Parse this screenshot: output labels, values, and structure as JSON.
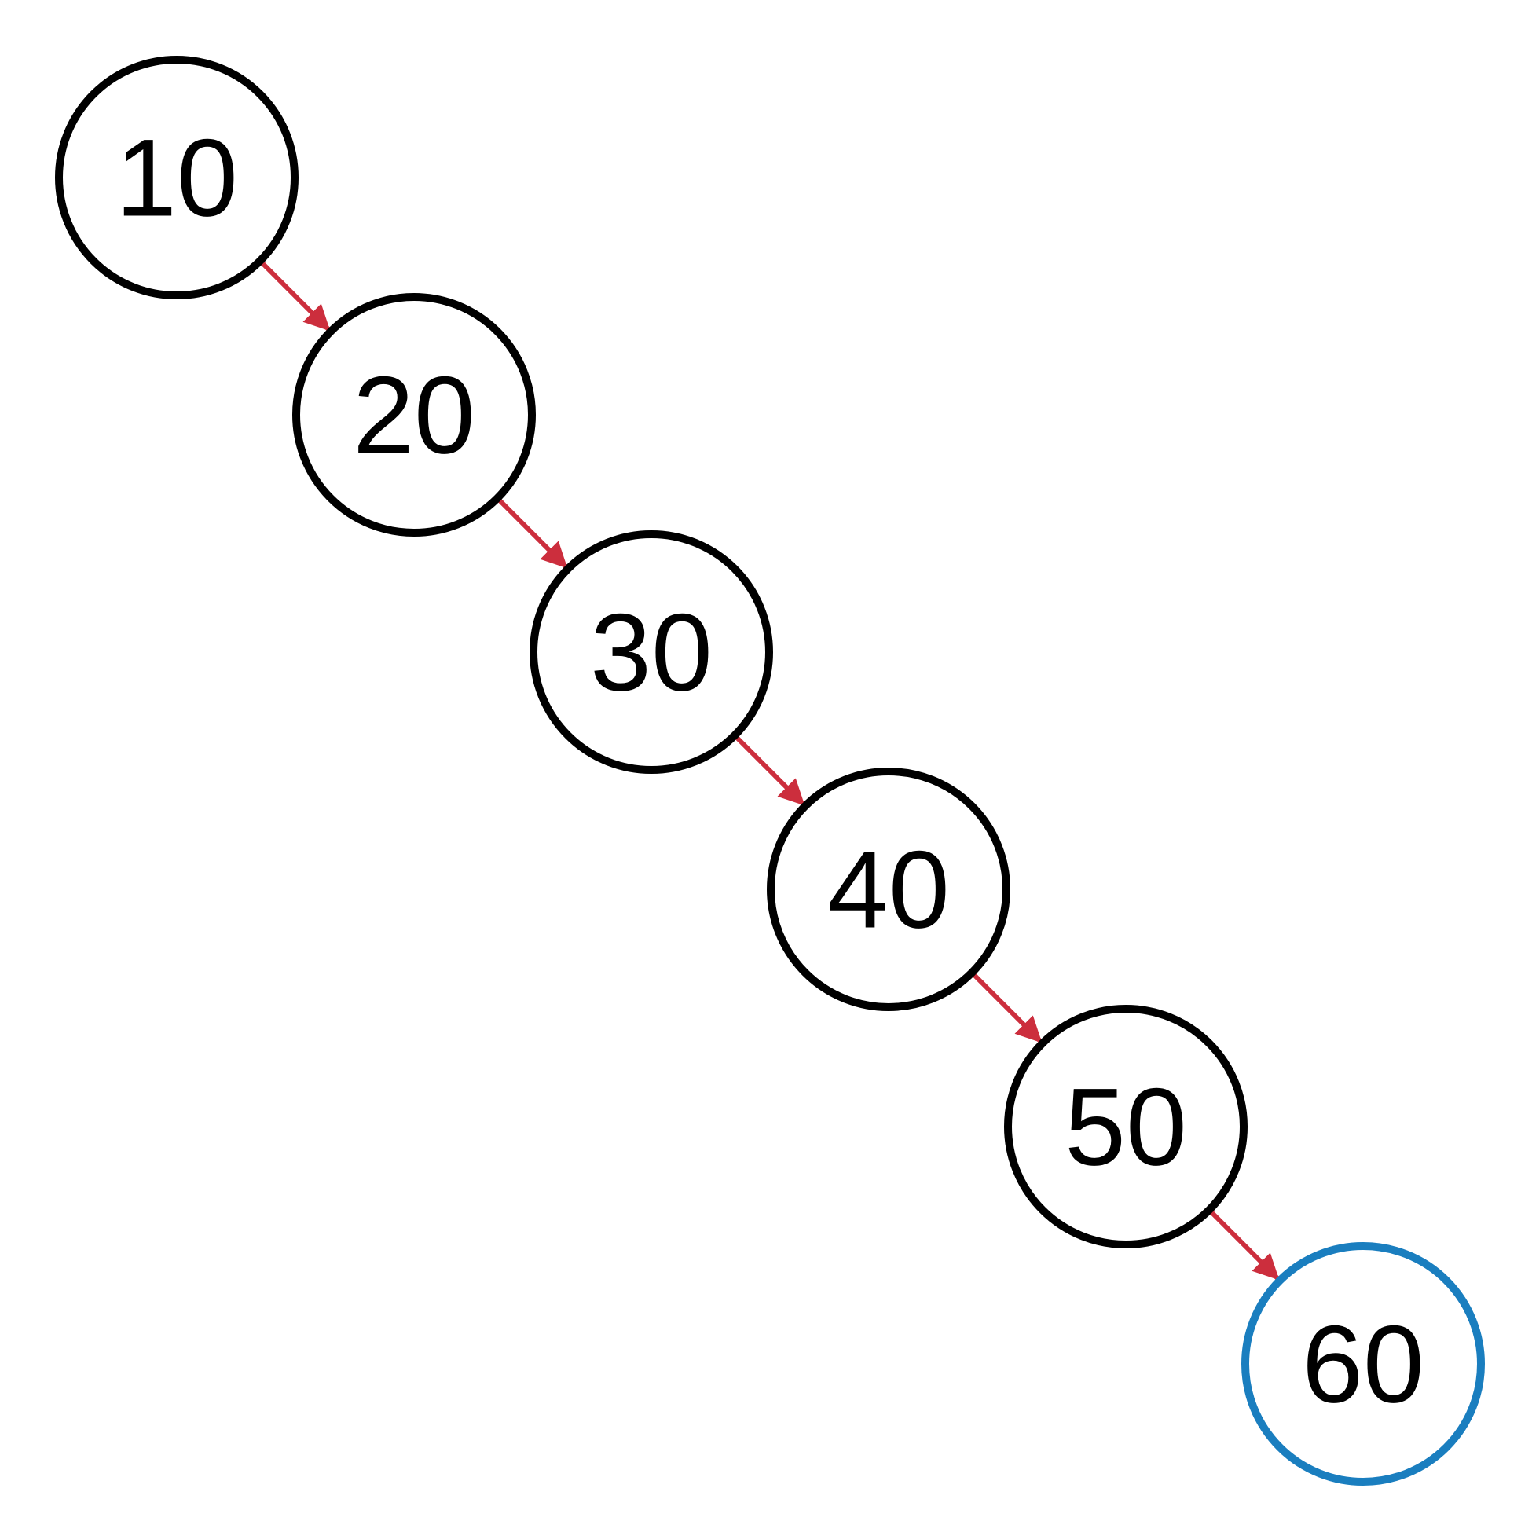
{
  "diagram": {
    "type": "linked-chain",
    "colors": {
      "node_stroke": "#000000",
      "highlight_stroke": "#1a7ebf",
      "edge": "#cc2e3d"
    },
    "nodes": [
      {
        "id": "n10",
        "label": "10",
        "highlight": false
      },
      {
        "id": "n20",
        "label": "20",
        "highlight": false
      },
      {
        "id": "n30",
        "label": "30",
        "highlight": false
      },
      {
        "id": "n40",
        "label": "40",
        "highlight": false
      },
      {
        "id": "n50",
        "label": "50",
        "highlight": false
      },
      {
        "id": "n60",
        "label": "60",
        "highlight": true
      }
    ],
    "edges": [
      {
        "from": "n10",
        "to": "n20"
      },
      {
        "from": "n20",
        "to": "n30"
      },
      {
        "from": "n30",
        "to": "n40"
      },
      {
        "from": "n40",
        "to": "n50"
      },
      {
        "from": "n50",
        "to": "n60"
      }
    ]
  }
}
